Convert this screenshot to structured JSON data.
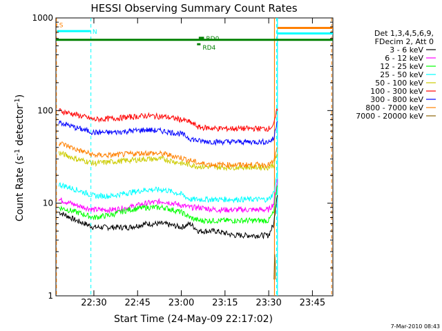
{
  "chart_data": {
    "type": "line",
    "title": "HESSI Observing Summary Count Rates",
    "xlabel": "Start Time (24-May-09 22:17:02)",
    "ylabel_main": "Count Rate (s",
    "ylabel_sup1": "-1",
    "ylabel_mid": " detector",
    "ylabel_sup2": "-1",
    "ylabel_end": ")",
    "yscale": "log",
    "ylim": [
      1,
      1000
    ],
    "xlim_minutes": [
      22.283,
      23.867
    ],
    "x_ticks": [
      "22:30",
      "22:45",
      "23:00",
      "23:15",
      "23:30",
      "23:45"
    ],
    "x_tick_minutes": [
      22.5,
      22.75,
      23.0,
      23.25,
      23.5,
      23.75
    ],
    "y_ticks": [
      "1",
      "10",
      "100",
      "1000"
    ],
    "y_tick_values": [
      1,
      10,
      100,
      1000
    ],
    "legend_header": [
      "Det 1,3,4,5,6,9,",
      "FDecim 2, Att 0"
    ],
    "legend_placement": "outside-right",
    "series": [
      {
        "name": "3 - 6 keV",
        "color": "#000000",
        "x": [
          22.3,
          22.4,
          22.5,
          22.6,
          22.7,
          22.8,
          22.9,
          23.0,
          23.05,
          23.1,
          23.2,
          23.3,
          23.4,
          23.5,
          23.53,
          23.55
        ],
        "values": [
          8,
          6.5,
          5.5,
          5.5,
          5.5,
          6,
          6,
          5.5,
          6,
          5,
          5,
          4.5,
          4.5,
          4.5,
          6,
          13
        ]
      },
      {
        "name": "6 - 12 keV",
        "color": "#ff00ff",
        "x": [
          22.3,
          22.4,
          22.5,
          22.6,
          22.7,
          22.8,
          22.9,
          23.0,
          23.05,
          23.1,
          23.2,
          23.3,
          23.4,
          23.5,
          23.53,
          23.55
        ],
        "values": [
          11,
          9.5,
          8.5,
          8.5,
          9,
          10,
          10.5,
          9.5,
          9,
          9,
          8.5,
          8.5,
          8.5,
          8.5,
          10,
          18
        ]
      },
      {
        "name": "12 - 25 keV",
        "color": "#00ff00",
        "x": [
          22.3,
          22.4,
          22.5,
          22.6,
          22.7,
          22.8,
          22.9,
          23.0,
          23.05,
          23.1,
          23.2,
          23.3,
          23.4,
          23.5,
          23.53,
          23.55
        ],
        "values": [
          9,
          8,
          7,
          7.5,
          8.5,
          9,
          9,
          8,
          7,
          6.5,
          6.5,
          6.5,
          6.5,
          6.5,
          8,
          16
        ]
      },
      {
        "name": "25 - 50 keV",
        "color": "#00ffff",
        "x": [
          22.3,
          22.4,
          22.5,
          22.6,
          22.7,
          22.8,
          22.9,
          23.0,
          23.05,
          23.1,
          23.2,
          23.3,
          23.4,
          23.5,
          23.53,
          23.55
        ],
        "values": [
          16,
          14,
          12,
          12,
          13,
          14,
          14,
          12.5,
          11,
          11,
          11,
          11,
          11,
          11,
          13,
          22
        ]
      },
      {
        "name": "50 - 100 keV",
        "color": "#cccc00",
        "x": [
          22.3,
          22.4,
          22.5,
          22.6,
          22.7,
          22.8,
          22.9,
          23.0,
          23.05,
          23.1,
          23.2,
          23.3,
          23.4,
          23.5,
          23.53,
          23.55
        ],
        "values": [
          35,
          30,
          27,
          28,
          29,
          30,
          30,
          27,
          26,
          25,
          24.5,
          24.5,
          24.5,
          24.5,
          26,
          34
        ]
      },
      {
        "name": "100 - 300 keV",
        "color": "#ff0000",
        "x": [
          22.3,
          22.4,
          22.5,
          22.6,
          22.7,
          22.8,
          22.9,
          23.0,
          23.05,
          23.1,
          23.2,
          23.3,
          23.4,
          23.5,
          23.53,
          23.55
        ],
        "values": [
          100,
          90,
          80,
          82,
          85,
          88,
          86,
          80,
          75,
          66,
          64,
          64,
          64,
          64,
          70,
          105
        ]
      },
      {
        "name": "300 - 800 keV",
        "color": "#0000ff",
        "x": [
          22.3,
          22.4,
          22.5,
          22.6,
          22.7,
          22.8,
          22.9,
          23.0,
          23.05,
          23.1,
          23.2,
          23.3,
          23.4,
          23.5,
          23.53,
          23.55
        ],
        "values": [
          75,
          65,
          58,
          58,
          60,
          62,
          60,
          56,
          50,
          47,
          46,
          46,
          46,
          46,
          50,
          80
        ]
      },
      {
        "name": "800 - 7000 keV",
        "color": "#ff8000",
        "x": [
          22.3,
          22.4,
          22.5,
          22.6,
          22.7,
          22.8,
          22.9,
          23.0,
          23.05,
          23.1,
          23.2,
          23.3,
          23.4,
          23.5,
          23.53,
          23.55
        ],
        "values": [
          45,
          38,
          33,
          33,
          34,
          35,
          34,
          31,
          29,
          27,
          26,
          26,
          26,
          26,
          28,
          40
        ]
      },
      {
        "name": "7000 - 20000 keV",
        "color": "#8b6508",
        "x": [
          23.53,
          23.535,
          23.54
        ],
        "values": [
          1.5,
          2.8,
          1.5
        ]
      }
    ],
    "flags": [
      {
        "label": "S",
        "color": "#ff8000",
        "x": [
          22.283,
          22.29
        ],
        "y": 850
      },
      {
        "label": "N",
        "color": "#00ffff",
        "x": [
          22.29,
          22.48
        ],
        "y": 720
      },
      {
        "label": "RD0",
        "color": "#008000",
        "x": [
          23.1,
          23.13
        ],
        "y": 610
      },
      {
        "label": "RD4",
        "color": "#008000",
        "x": [
          23.09,
          23.11
        ],
        "y": 520
      }
    ],
    "annotation_date": "7-Mar-2010 08:43"
  }
}
